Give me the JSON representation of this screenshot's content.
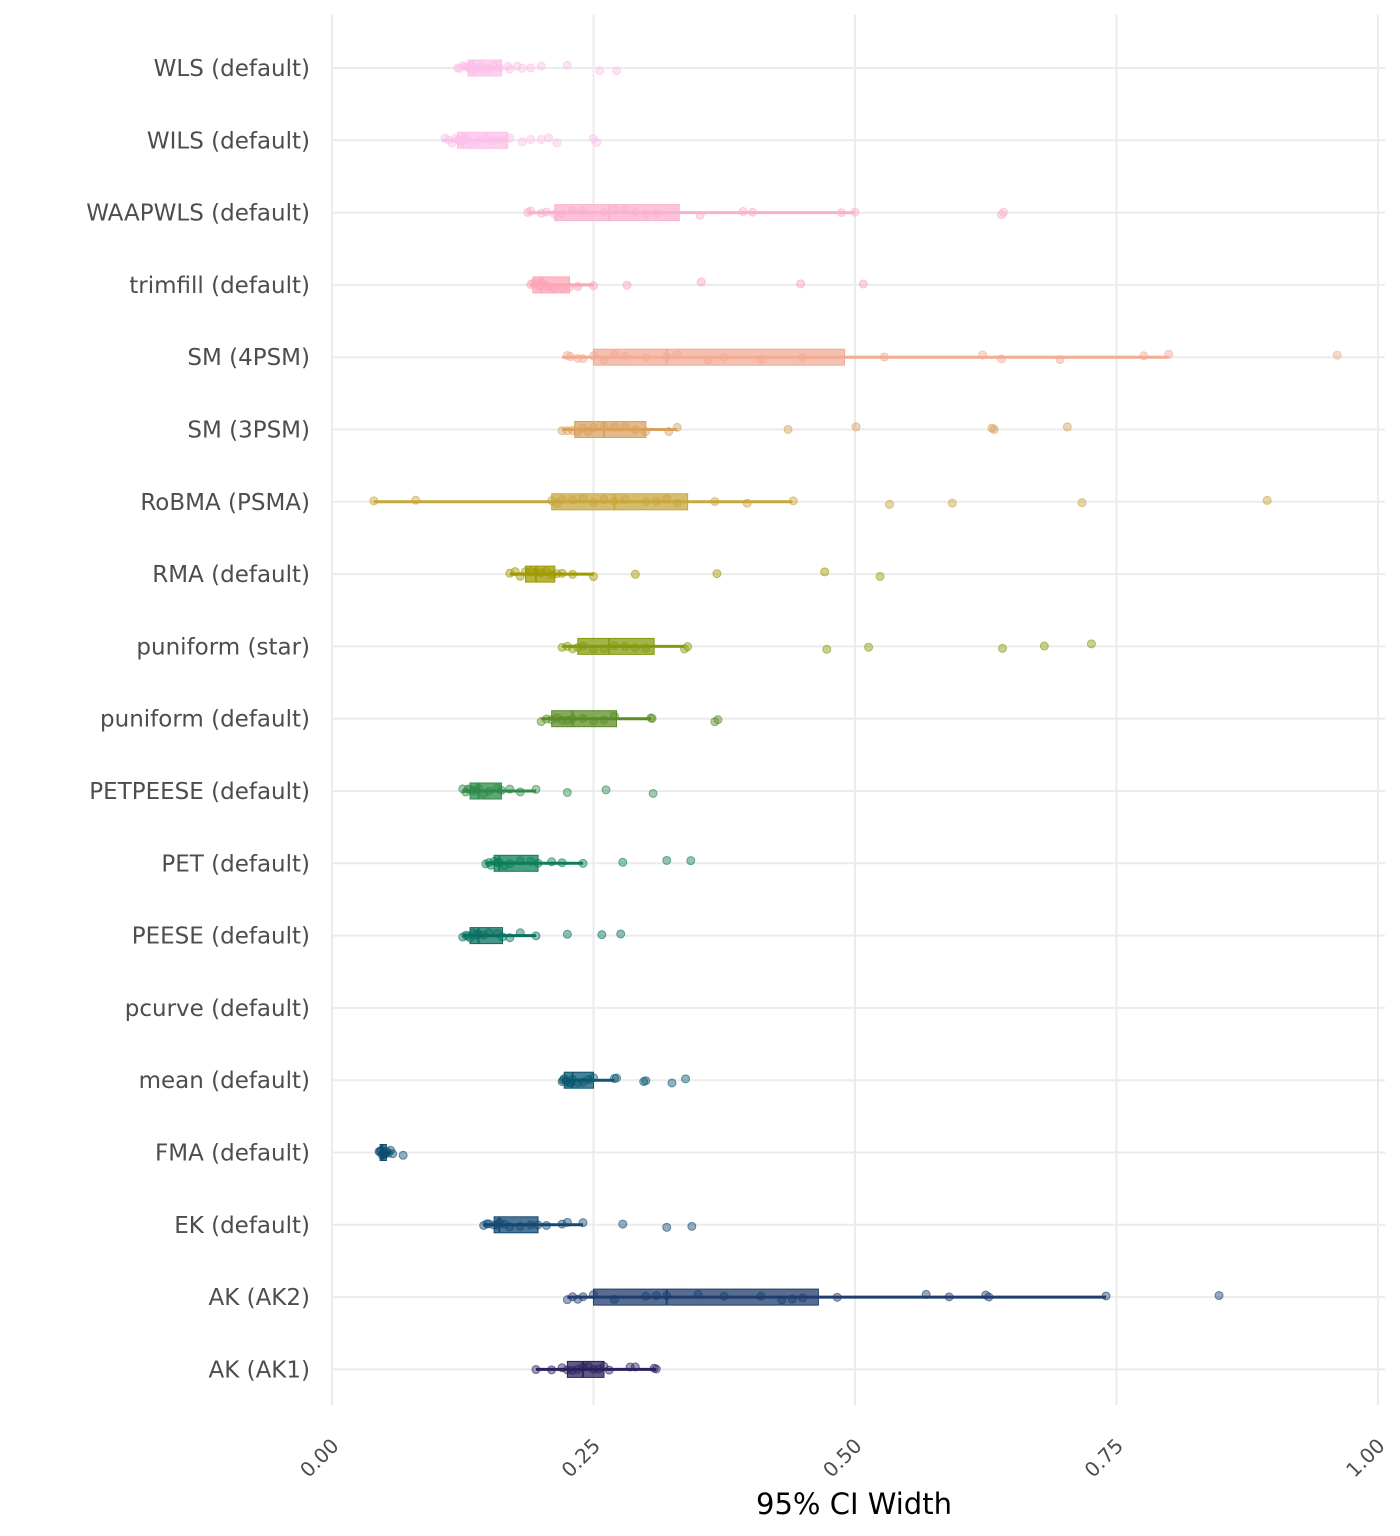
{
  "chart_data": {
    "type": "box-jitter",
    "xlabel": "95% CI Width",
    "ylabel": "",
    "xlim": [
      0,
      1
    ],
    "x_ticks": [
      0,
      0.25,
      0.5,
      0.75,
      1
    ],
    "x_tick_labels": [
      "0.00",
      "0.25",
      "0.50",
      "0.75",
      "1.00"
    ],
    "grid": true,
    "legend": "none",
    "categories": [
      "WLS (default)",
      "WILS (default)",
      "WAAPWLS (default)",
      "trimfill (default)",
      "SM (4PSM)",
      "SM (3PSM)",
      "RoBMA (PSMA)",
      "RMA (default)",
      "puniform (star)",
      "puniform (default)",
      "PETPEESE (default)",
      "PET (default)",
      "PEESE (default)",
      "pcurve (default)",
      "mean (default)",
      "FMA (default)",
      "EK (default)",
      "AK (AK2)",
      "AK (AK1)"
    ],
    "colors": [
      "#FCC0E8",
      "#FCC0E8",
      "#FBB0CF",
      "#FCA5B4",
      "#F2AB94",
      "#D9A15F",
      "#C8A73D",
      "#A09A00",
      "#859B0F",
      "#5C8E27",
      "#2E8B4A",
      "#0E7E57",
      "#0A7062",
      "#0A6466",
      "#0B5870",
      "#0D4E70",
      "#134A73",
      "#1F3D6E",
      "#2B2160"
    ],
    "series": [
      {
        "name": "WLS (default)",
        "box": [
          0.125,
          0.13,
          0.135,
          0.162,
          0.162
        ],
        "points": [
          0.12,
          0.122,
          0.125,
          0.128,
          0.13,
          0.132,
          0.133,
          0.135,
          0.137,
          0.14,
          0.143,
          0.146,
          0.15,
          0.155,
          0.16,
          0.168,
          0.17,
          0.177,
          0.182,
          0.19,
          0.2,
          0.225,
          0.256,
          0.272
        ]
      },
      {
        "name": "WILS (default)",
        "box": [
          0.105,
          0.12,
          0.125,
          0.168,
          0.168
        ],
        "points": [
          0.108,
          0.112,
          0.115,
          0.118,
          0.12,
          0.122,
          0.124,
          0.126,
          0.128,
          0.132,
          0.14,
          0.148,
          0.155,
          0.162,
          0.17,
          0.182,
          0.19,
          0.2,
          0.207,
          0.215,
          0.25,
          0.253
        ]
      },
      {
        "name": "WAAPWLS (default)",
        "box": [
          0.187,
          0.213,
          0.265,
          0.332,
          0.5
        ],
        "points": [
          0.187,
          0.19,
          0.2,
          0.205,
          0.213,
          0.22,
          0.23,
          0.24,
          0.26,
          0.27,
          0.28,
          0.29,
          0.3,
          0.31,
          0.352,
          0.393,
          0.402,
          0.487,
          0.5,
          0.64,
          0.642
        ]
      },
      {
        "name": "trimfill (default)",
        "box": [
          0.19,
          0.192,
          0.2,
          0.227,
          0.25
        ],
        "points": [
          0.19,
          0.192,
          0.195,
          0.198,
          0.2,
          0.202,
          0.205,
          0.208,
          0.212,
          0.22,
          0.227,
          0.235,
          0.25,
          0.282,
          0.353,
          0.448,
          0.508
        ]
      },
      {
        "name": "SM (4PSM)",
        "box": [
          0.22,
          0.25,
          0.32,
          0.49,
          0.8
        ],
        "points": [
          0.225,
          0.228,
          0.235,
          0.24,
          0.25,
          0.26,
          0.27,
          0.28,
          0.3,
          0.32,
          0.33,
          0.36,
          0.375,
          0.41,
          0.45,
          0.528,
          0.622,
          0.64,
          0.696,
          0.776,
          0.8,
          0.961
        ]
      },
      {
        "name": "SM (3PSM)",
        "box": [
          0.22,
          0.232,
          0.26,
          0.3,
          0.33
        ],
        "points": [
          0.22,
          0.225,
          0.23,
          0.235,
          0.24,
          0.245,
          0.25,
          0.26,
          0.27,
          0.28,
          0.29,
          0.3,
          0.322,
          0.33,
          0.436,
          0.501,
          0.631,
          0.633,
          0.703
        ]
      },
      {
        "name": "RoBMA (PSMA)",
        "box": [
          0.04,
          0.21,
          0.27,
          0.34,
          0.44
        ],
        "points": [
          0.04,
          0.08,
          0.21,
          0.215,
          0.22,
          0.23,
          0.24,
          0.25,
          0.26,
          0.27,
          0.28,
          0.3,
          0.31,
          0.32,
          0.33,
          0.366,
          0.397,
          0.441,
          0.533,
          0.593,
          0.717,
          0.894
        ]
      },
      {
        "name": "RMA (default)",
        "box": [
          0.17,
          0.185,
          0.195,
          0.213,
          0.25
        ],
        "points": [
          0.17,
          0.175,
          0.18,
          0.185,
          0.19,
          0.195,
          0.2,
          0.205,
          0.21,
          0.215,
          0.22,
          0.23,
          0.25,
          0.29,
          0.368,
          0.471,
          0.524
        ]
      },
      {
        "name": "puniform (star)",
        "box": [
          0.22,
          0.235,
          0.265,
          0.308,
          0.337
        ],
        "points": [
          0.22,
          0.225,
          0.23,
          0.235,
          0.24,
          0.25,
          0.26,
          0.27,
          0.28,
          0.29,
          0.3,
          0.337,
          0.34,
          0.473,
          0.513,
          0.641,
          0.681,
          0.726
        ]
      },
      {
        "name": "puniform (default)",
        "box": [
          0.2,
          0.21,
          0.23,
          0.272,
          0.305
        ],
        "points": [
          0.2,
          0.205,
          0.21,
          0.215,
          0.22,
          0.225,
          0.23,
          0.24,
          0.25,
          0.26,
          0.27,
          0.305,
          0.306,
          0.366,
          0.369
        ]
      },
      {
        "name": "PETPEESE (default)",
        "box": [
          0.125,
          0.132,
          0.14,
          0.162,
          0.195
        ],
        "points": [
          0.125,
          0.128,
          0.13,
          0.132,
          0.135,
          0.138,
          0.14,
          0.145,
          0.15,
          0.158,
          0.162,
          0.17,
          0.18,
          0.195,
          0.225,
          0.262,
          0.307
        ]
      },
      {
        "name": "PET (default)",
        "box": [
          0.147,
          0.155,
          0.16,
          0.197,
          0.24
        ],
        "points": [
          0.147,
          0.15,
          0.152,
          0.155,
          0.158,
          0.16,
          0.165,
          0.17,
          0.18,
          0.19,
          0.197,
          0.21,
          0.22,
          0.24,
          0.278,
          0.32,
          0.343
        ]
      },
      {
        "name": "PEESE (default)",
        "box": [
          0.125,
          0.132,
          0.14,
          0.163,
          0.195
        ],
        "points": [
          0.125,
          0.128,
          0.13,
          0.132,
          0.135,
          0.138,
          0.14,
          0.145,
          0.15,
          0.158,
          0.163,
          0.17,
          0.18,
          0.195,
          0.225,
          0.258,
          0.276
        ]
      },
      {
        "name": "pcurve (default)",
        "box": null,
        "points": []
      },
      {
        "name": "mean (default)",
        "box": [
          0.22,
          0.222,
          0.23,
          0.25,
          0.27
        ],
        "points": [
          0.22,
          0.221,
          0.222,
          0.224,
          0.226,
          0.228,
          0.23,
          0.235,
          0.24,
          0.245,
          0.25,
          0.27,
          0.272,
          0.298,
          0.3,
          0.325,
          0.338
        ]
      },
      {
        "name": "FMA (default)",
        "box": [
          0.045,
          0.046,
          0.048,
          0.052,
          0.056
        ],
        "points": [
          0.045,
          0.046,
          0.047,
          0.048,
          0.049,
          0.05,
          0.051,
          0.052,
          0.054,
          0.056,
          0.058,
          0.068
        ]
      },
      {
        "name": "EK (default)",
        "box": [
          0.145,
          0.155,
          0.16,
          0.197,
          0.24
        ],
        "points": [
          0.145,
          0.148,
          0.15,
          0.155,
          0.158,
          0.16,
          0.165,
          0.17,
          0.18,
          0.19,
          0.197,
          0.205,
          0.22,
          0.225,
          0.24,
          0.278,
          0.32,
          0.344
        ]
      },
      {
        "name": "AK (AK2)",
        "box": [
          0.225,
          0.25,
          0.32,
          0.465,
          0.74
        ],
        "points": [
          0.225,
          0.23,
          0.235,
          0.24,
          0.25,
          0.27,
          0.3,
          0.31,
          0.32,
          0.35,
          0.375,
          0.41,
          0.43,
          0.44,
          0.45,
          0.483,
          0.568,
          0.59,
          0.625,
          0.628,
          0.74,
          0.848
        ]
      },
      {
        "name": "AK (AK1)",
        "box": [
          0.195,
          0.225,
          0.24,
          0.26,
          0.31
        ],
        "points": [
          0.195,
          0.21,
          0.22,
          0.225,
          0.23,
          0.235,
          0.24,
          0.245,
          0.25,
          0.255,
          0.26,
          0.265,
          0.285,
          0.29,
          0.308,
          0.31
        ]
      }
    ]
  }
}
